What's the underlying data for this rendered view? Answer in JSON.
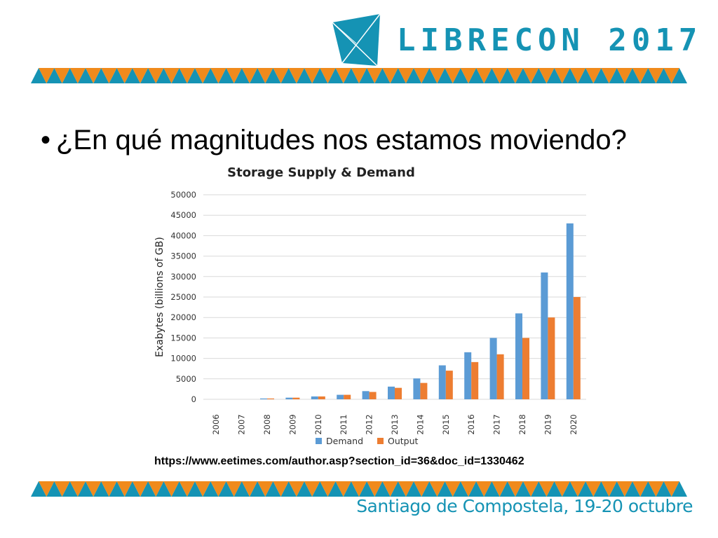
{
  "header": {
    "brand": "LIBRECON 2017",
    "accent_color": "#1593b4",
    "band_orange": "#f08a1c",
    "band_teal": "#1593b4"
  },
  "slide": {
    "bullet": "•",
    "heading": "¿En qué magnitudes nos estamos moviendo?",
    "source": "https://www.eetimes.com/author.asp?section_id=36&doc_id=1330462"
  },
  "footer": {
    "text": "Santiago de Compostela, 19-20 octubre"
  },
  "chart_data": {
    "type": "bar",
    "title": "Storage Supply & Demand",
    "ylabel": "Exabytes (billions of GB)",
    "xlabel": "",
    "categories": [
      "2006",
      "2007",
      "2008",
      "2009",
      "2010",
      "2011",
      "2012",
      "2013",
      "2014",
      "2015",
      "2016",
      "2017",
      "2018",
      "2019",
      "2020"
    ],
    "series": [
      {
        "name": "Demand",
        "color": "#5b9bd5",
        "values": [
          0,
          0,
          200,
          400,
          700,
          1100,
          2000,
          3100,
          5100,
          8300,
          11500,
          15000,
          21000,
          31000,
          43000
        ]
      },
      {
        "name": "Output",
        "color": "#ed7d31",
        "values": [
          0,
          0,
          200,
          400,
          700,
          1100,
          1800,
          2800,
          4000,
          7000,
          9100,
          11000,
          15000,
          20000,
          25000
        ]
      }
    ],
    "ylim": [
      0,
      50000
    ],
    "yticks": [
      0,
      5000,
      10000,
      15000,
      20000,
      25000,
      30000,
      35000,
      40000,
      45000,
      50000
    ],
    "grid": true,
    "legend": "bottom"
  }
}
